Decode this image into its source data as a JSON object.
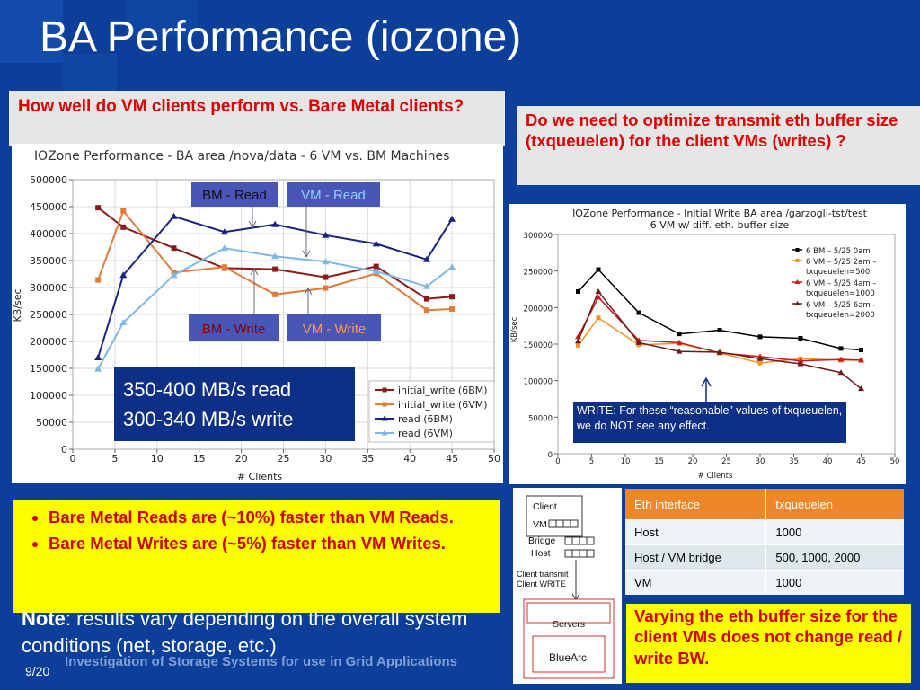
{
  "slide": {
    "title": "BA Performance (iozone)",
    "question_left": "How well do VM clients perform vs. Bare Metal clients?",
    "question_right": "Do we need to optimize transmit eth buffer size (txqueuelen) for the client VMs (writes) ?",
    "bullets": [
      "Bare Metal Reads are (~10%) faster than VM Reads.",
      "Bare Metal Writes are (~5%) faster than VM Writes."
    ],
    "note_label": "Note",
    "note_text": ": results vary depending on the overall system conditions (net, storage, etc.)",
    "page_number": "9/20",
    "footer": "Investigation of Storage Systems for use in Grid Applications",
    "conclusion": "Varying the eth buffer size for the client VMs does not change read / write BW."
  },
  "chart_data": [
    {
      "type": "line",
      "title": "IOZone Performance - BA area /nova/data - 6 VM vs. BM Machines",
      "xlabel": "# Clients",
      "ylabel": "KB/sec",
      "xlim": [
        0,
        50
      ],
      "ylim": [
        0,
        500000
      ],
      "xticks": [
        "0",
        "5",
        "10",
        "15",
        "20",
        "25",
        "30",
        "35",
        "40",
        "45",
        "50"
      ],
      "yticks": [
        "0",
        "50000",
        "100000",
        "150000",
        "200000",
        "250000",
        "300000",
        "350000",
        "400000",
        "450000",
        "500000"
      ],
      "grid": true,
      "legend_position": "bottom-right",
      "series": [
        {
          "name": "initial_write (6BM)",
          "color": "#8b1a1a",
          "marker": "square",
          "x": [
            3,
            6,
            12,
            18,
            24,
            30,
            36,
            42,
            45
          ],
          "values": [
            448000,
            412000,
            373000,
            336000,
            334000,
            319000,
            339000,
            279000,
            283000
          ]
        },
        {
          "name": "initial_write (6VM)",
          "color": "#e07b39",
          "marker": "square",
          "x": [
            3,
            6,
            12,
            18,
            24,
            30,
            36,
            42,
            45
          ],
          "values": [
            314000,
            442000,
            328000,
            338000,
            287000,
            299000,
            326000,
            258000,
            260000
          ]
        },
        {
          "name": "read (6BM)",
          "color": "#1a237e",
          "marker": "triangle",
          "x": [
            3,
            6,
            12,
            18,
            24,
            30,
            36,
            42,
            45
          ],
          "values": [
            170000,
            323000,
            432000,
            403000,
            417000,
            397000,
            381000,
            352000,
            427000
          ]
        },
        {
          "name": "read (6VM)",
          "color": "#7fb7e6",
          "marker": "triangle",
          "x": [
            3,
            6,
            12,
            18,
            24,
            30,
            36,
            42,
            45
          ],
          "values": [
            149000,
            235000,
            323000,
            373000,
            358000,
            348000,
            330000,
            302000,
            338000
          ]
        }
      ],
      "annotations": {
        "bm_read": "BM - Read",
        "vm_read": "VM - Read",
        "bm_write": "BM - Write",
        "vm_write": "VM - Write",
        "summary_line1": "350-400 MB/s read",
        "summary_line2": "300-340 MB/s write"
      }
    },
    {
      "type": "line",
      "title_line1": "IOZone Performance - Initial Write BA area /garzogli-tst/test",
      "title_line2": "6 VM w/ diff. eth. buffer size",
      "xlabel": "# Clients",
      "ylabel": "KB/sec",
      "xlim": [
        0,
        50
      ],
      "ylim": [
        0,
        300000
      ],
      "xticks": [
        "0",
        "5",
        "10",
        "15",
        "20",
        "25",
        "30",
        "35",
        "40",
        "45",
        "50"
      ],
      "yticks": [
        "0",
        "50000",
        "100000",
        "150000",
        "200000",
        "250000",
        "300000"
      ],
      "grid": false,
      "legend_position": "top-right",
      "series": [
        {
          "name": "6 BM – 5/25 0am",
          "color": "#000000",
          "marker": "square",
          "x": [
            3,
            6,
            12,
            18,
            24,
            30,
            36,
            42,
            45
          ],
          "values": [
            222000,
            252000,
            193000,
            164000,
            169000,
            160000,
            158000,
            144000,
            142000
          ]
        },
        {
          "name": "6 VM – 5/25 2am – txqueuelen=500",
          "color": "#f0932b",
          "marker": "square",
          "x": [
            3,
            6,
            12,
            18,
            24,
            30,
            36,
            42,
            45
          ],
          "values": [
            148000,
            186000,
            149000,
            151000,
            138000,
            124000,
            130000,
            128000,
            128000
          ]
        },
        {
          "name": "6 VM – 5/25 4am – txqueuelen=1000",
          "color": "#cc1a1a",
          "marker": "triangle",
          "x": [
            3,
            6,
            12,
            18,
            24,
            30,
            36,
            42,
            45
          ],
          "values": [
            160000,
            214000,
            155000,
            152000,
            138000,
            133000,
            127000,
            129000,
            128000
          ]
        },
        {
          "name": "6 VM – 5/25 6am – txqueuelen=2000",
          "color": "#6b1a1a",
          "marker": "triangle",
          "x": [
            3,
            6,
            12,
            18,
            24,
            30,
            36,
            42,
            45
          ],
          "values": [
            154000,
            222000,
            152000,
            140000,
            139000,
            130000,
            123000,
            111000,
            89000
          ]
        }
      ],
      "annotation": "WRITE: For these “reasonable” values of txqueuelen, we do NOT see any effect."
    }
  ],
  "diagram": {
    "client": "Client",
    "vm": "VM",
    "bridge": "Bridge",
    "host": "Host",
    "transmit": "Client transmit",
    "client_write": "Client WRITE",
    "servers": "Servers",
    "bluearc": "BlueArc"
  },
  "eth_table": {
    "headers": [
      "Eth interface",
      "txqueuelen"
    ],
    "rows": [
      [
        "Host",
        "1000"
      ],
      [
        "Host / VM bridge",
        "500, 1000, 2000"
      ],
      [
        "VM",
        "1000"
      ]
    ]
  }
}
